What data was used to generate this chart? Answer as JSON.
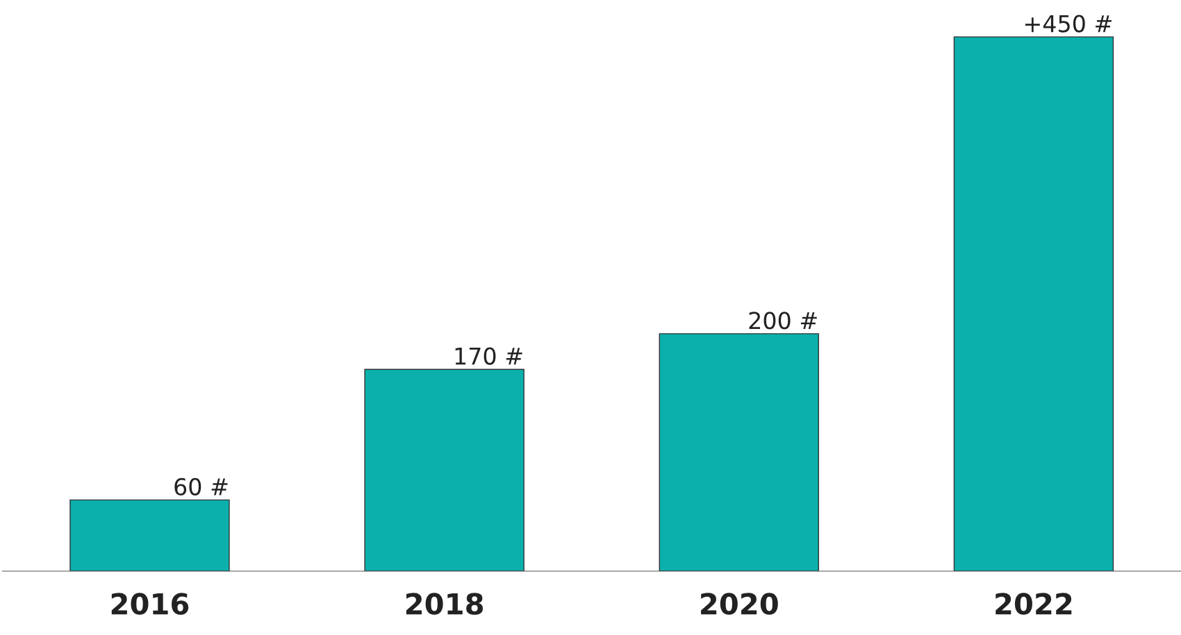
{
  "chart_data": {
    "type": "bar",
    "categories": [
      "2016",
      "2018",
      "2020",
      "2022"
    ],
    "values": [
      60,
      170,
      200,
      450
    ],
    "value_labels": [
      "60 #",
      "170 #",
      "200 #",
      "+450 #"
    ],
    "color": "#0bb0ac",
    "grid": false,
    "legend": false
  }
}
